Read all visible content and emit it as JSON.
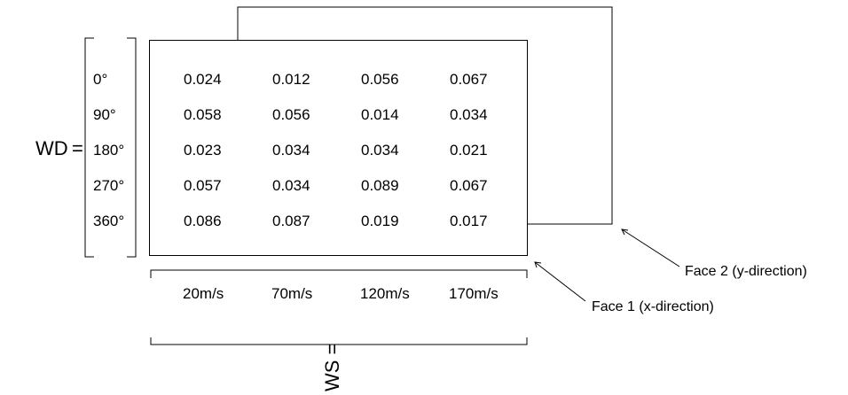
{
  "wd_label": "WD",
  "equals": "=",
  "ws_label": "WS =",
  "directions": [
    "0°",
    "90°",
    "180°",
    "270°",
    "360°"
  ],
  "speeds": [
    "20m/s",
    "70m/s",
    "120m/s",
    "170m/s"
  ],
  "face1_values": [
    [
      "0.024",
      "0.012",
      "0.056",
      "0.067"
    ],
    [
      "0.058",
      "0.056",
      "0.014",
      "0.034"
    ],
    [
      "0.023",
      "0.034",
      "0.034",
      "0.021"
    ],
    [
      "0.057",
      "0.034",
      "0.089",
      "0.067"
    ],
    [
      "0.086",
      "0.087",
      "0.019",
      "0.017"
    ]
  ],
  "face1_label": "Face 1 (x-direction)",
  "face2_label": "Face 2 (y-direction)"
}
